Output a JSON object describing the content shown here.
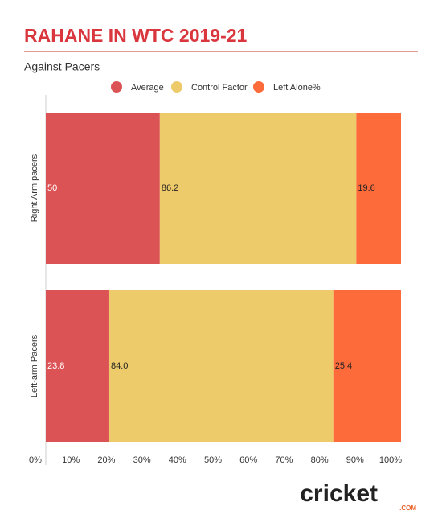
{
  "chart_data": {
    "type": "bar",
    "orientation": "horizontal",
    "stack": "percent",
    "title": "RAHANE IN WTC 2019-21",
    "subtitle": "Against Pacers",
    "categories": [
      "Right Arm pacers",
      "Left-arm Pacers"
    ],
    "series": [
      {
        "name": "Average",
        "color": "#dc5356",
        "values": [
          50,
          23.8
        ]
      },
      {
        "name": "Control Factor",
        "color": "#eecb6a",
        "values": [
          86.2,
          84.0
        ],
        "value_labels": [
          "86.2",
          "84.0"
        ]
      },
      {
        "name": "Left Alone%",
        "color": "#fd6b3a",
        "values": [
          19.6,
          25.4
        ]
      }
    ],
    "xlim": [
      0,
      100
    ],
    "xticks": [
      {
        "value": 0,
        "label": "0%"
      },
      {
        "value": 10,
        "label": "10%"
      },
      {
        "value": 20,
        "label": "20%"
      },
      {
        "value": 30,
        "label": "30%"
      },
      {
        "value": 40,
        "label": "40%"
      },
      {
        "value": 50,
        "label": "50%"
      },
      {
        "value": 60,
        "label": "60%"
      },
      {
        "value": 70,
        "label": "70%"
      },
      {
        "value": 80,
        "label": "80%"
      },
      {
        "value": 90,
        "label": "90%"
      },
      {
        "value": 100,
        "label": "100%"
      }
    ],
    "legend": "top",
    "logo": {
      "name": "cricket",
      "suffix": ".COM"
    }
  }
}
